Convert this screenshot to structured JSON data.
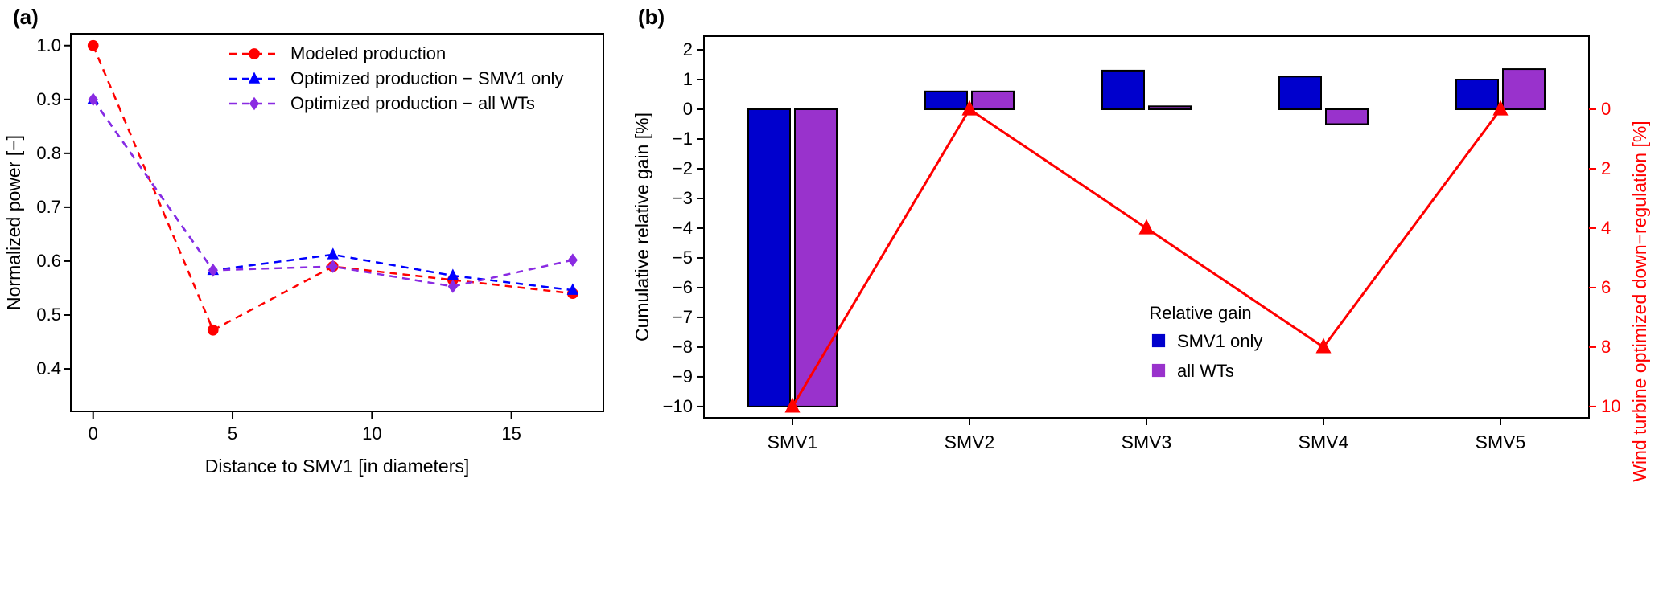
{
  "figure": {
    "panel_a_label": "(a)",
    "panel_b_label": "(b)"
  },
  "colors": {
    "red": "#FF0000",
    "blue_line": "#0000FF",
    "purple_line": "#8A2BE2",
    "blue_bar": "#0000CD",
    "purple_bar": "#9932CC",
    "axis_black": "#000000"
  },
  "chart_data": [
    {
      "id": "panel-a",
      "type": "line",
      "title": "",
      "xlabel": "Distance to SMV1 [in diameters]",
      "ylabel": "Normalized power [−]",
      "xlim": [
        -0.8,
        18.3
      ],
      "ylim": [
        0.321,
        1.022
      ],
      "xticks": [
        0,
        5,
        10,
        15
      ],
      "xtick_labels": [
        "0",
        "5",
        "10",
        "15"
      ],
      "yticks": [
        0.4,
        0.5,
        0.6,
        0.7,
        0.8,
        0.9,
        1.0
      ],
      "ytick_labels": [
        "0.4",
        "0.5",
        "0.6",
        "0.7",
        "0.8",
        "0.9",
        "1.0"
      ],
      "grid": false,
      "legend_position": "inside-top",
      "series": [
        {
          "name": "Modeled production",
          "color": "#FF0000",
          "marker": "circle",
          "linestyle": "dashed",
          "x": [
            0,
            4.3,
            8.6,
            12.9,
            17.2
          ],
          "y": [
            1.0,
            0.472,
            0.59,
            0.565,
            0.54
          ]
        },
        {
          "name": "Optimized production − SMV1 only",
          "color": "#0000FF",
          "marker": "triangle",
          "linestyle": "dashed",
          "x": [
            0,
            4.3,
            8.6,
            12.9,
            17.2
          ],
          "y": [
            0.9,
            0.583,
            0.612,
            0.573,
            0.546
          ]
        },
        {
          "name": "Optimized production − all WTs",
          "color": "#8A2BE2",
          "marker": "diamond",
          "linestyle": "dashed",
          "x": [
            0,
            4.3,
            8.6,
            12.9,
            17.2
          ],
          "y": [
            0.9,
            0.583,
            0.59,
            0.553,
            0.602
          ]
        }
      ]
    },
    {
      "id": "panel-b",
      "type": "bar",
      "categories": [
        "SMV1",
        "SMV2",
        "SMV3",
        "SMV4",
        "SMV5"
      ],
      "ylabel_left": "Cumulative relative gain [%]",
      "ylabel_right": "Wind turbine optimized down−regulation [%]",
      "ylim_left": [
        -10.38,
        2.46
      ],
      "yticks_left": [
        2,
        1,
        0,
        -1,
        -2,
        -3,
        -4,
        -5,
        -6,
        -7,
        -8,
        -9,
        -10
      ],
      "ytick_labels_left": [
        "2",
        "1",
        "0",
        "−1",
        "−2",
        "−3",
        "−4",
        "−5",
        "−6",
        "−7",
        "−8",
        "−9",
        "−10"
      ],
      "yticks_right": [
        0,
        2,
        4,
        6,
        8,
        10
      ],
      "ytick_labels_right": [
        "0",
        "2",
        "4",
        "6",
        "8",
        "10"
      ],
      "right_axis_color": "#FF0000",
      "grid": false,
      "legend_title": "Relative gain",
      "legend_position": "inside-center-low",
      "bar_series": [
        {
          "name": "SMV1 only",
          "color": "#0000CD",
          "values": [
            -10,
            0.6,
            1.3,
            1.1,
            1.0
          ]
        },
        {
          "name": "all WTs",
          "color": "#9932CC",
          "values": [
            -10,
            0.6,
            0.1,
            -0.5,
            1.35
          ]
        }
      ],
      "line_series": {
        "name": "Wind turbine optimized down−regulation",
        "color": "#FF0000",
        "marker": "triangle",
        "values": [
          10,
          0,
          4,
          8,
          0
        ]
      }
    }
  ]
}
